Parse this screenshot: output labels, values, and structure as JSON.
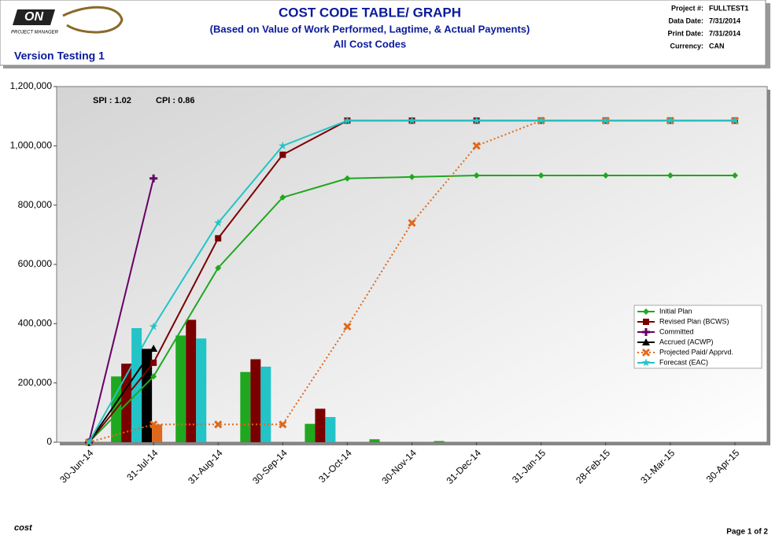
{
  "header": {
    "logo": {
      "mark": "ON",
      "tagline": "PROJECT MANAGER"
    },
    "title": "COST CODE TABLE/ GRAPH",
    "subtitle": "(Based on Value of Work Performed, Lagtime, & Actual Payments)",
    "subtitle2": "All Cost Codes",
    "version": "Version Testing 1",
    "fields": [
      {
        "label": "Project #:",
        "value": "FULLTEST1"
      },
      {
        "label": "Data Date:",
        "value": "7/31/2014"
      },
      {
        "label": "Print Date:",
        "value": "7/31/2014"
      },
      {
        "label": "Currency:",
        "value": "CAN"
      }
    ]
  },
  "footer": {
    "logo": "cost",
    "page": "Page 1 of 2"
  },
  "chart_data": {
    "type": "line",
    "annotations": [
      "SPI : 1.02",
      "CPI : 0.86"
    ],
    "categories": [
      "30-Jun-14",
      "31-Jul-14",
      "31-Aug-14",
      "30-Sep-14",
      "31-Oct-14",
      "30-Nov-14",
      "31-Dec-14",
      "31-Jan-15",
      "28-Feb-15",
      "31-Mar-15",
      "30-Apr-15"
    ],
    "ylim": [
      0,
      1200000
    ],
    "yticks": [
      0,
      {
        "value": 200000,
        "label": "200,000"
      },
      {
        "value": 400000,
        "label": "400,000"
      },
      {
        "value": 600000,
        "label": "600,000"
      },
      {
        "value": 800000,
        "label": "800,000"
      },
      {
        "value": 1000000,
        "label": "1,000,000"
      },
      {
        "value": 1200000,
        "label": "1,200,000"
      }
    ],
    "grid": false,
    "legend": "right",
    "series": [
      {
        "name": "Initial Plan",
        "color": "#1fa81f",
        "marker": "diamond",
        "values": [
          0,
          222000,
          588000,
          826000,
          890000,
          895000,
          900000,
          900000,
          900000,
          900000,
          900000
        ]
      },
      {
        "name": "Revised Plan (BCWS)",
        "color": "#7a0000",
        "marker": "square",
        "values": [
          0,
          268000,
          688000,
          970000,
          1085000,
          1085000,
          1085000,
          1085000,
          1085000,
          1085000,
          1085000
        ]
      },
      {
        "name": "Committed",
        "color": "#660066",
        "marker": "plus",
        "values": [
          0,
          890000,
          null,
          null,
          null,
          null,
          null,
          null,
          null,
          null,
          null
        ]
      },
      {
        "name": "Accrued (ACWP)",
        "color": "#000000",
        "marker": "triangle",
        "values": [
          0,
          316000,
          null,
          null,
          null,
          null,
          null,
          null,
          null,
          null,
          null
        ]
      },
      {
        "name": "Projected Paid/ Apprvd.",
        "color": "#e0681a",
        "marker": "x",
        "dashed": true,
        "values": [
          0,
          60000,
          60000,
          60000,
          390000,
          740000,
          1000000,
          1085000,
          1085000,
          1085000,
          1085000
        ]
      },
      {
        "name": "Forecast (EAC)",
        "color": "#22c4c8",
        "marker": "star",
        "values": [
          0,
          390000,
          740000,
          1000000,
          1085000,
          1085000,
          1085000,
          1085000,
          1085000,
          1085000,
          1085000
        ]
      }
    ],
    "bar_series": [
      {
        "color": "#1fa81f",
        "values": [
          null,
          222000,
          360000,
          237000,
          62000,
          10000,
          4000,
          null,
          null,
          null,
          null
        ]
      },
      {
        "color": "#7a0000",
        "values": [
          null,
          265000,
          413000,
          280000,
          113000,
          null,
          null,
          null,
          null,
          null,
          null
        ]
      },
      {
        "color": "#22c4c8",
        "values": [
          null,
          385000,
          350000,
          255000,
          85000,
          null,
          null,
          null,
          null,
          null,
          null
        ]
      },
      {
        "color": "#000000",
        "values": [
          null,
          315000,
          null,
          null,
          null,
          null,
          null,
          null,
          null,
          null,
          null
        ]
      },
      {
        "color": "#e0681a",
        "values": [
          null,
          60000,
          null,
          null,
          null,
          null,
          null,
          null,
          null,
          null,
          null
        ]
      }
    ]
  }
}
